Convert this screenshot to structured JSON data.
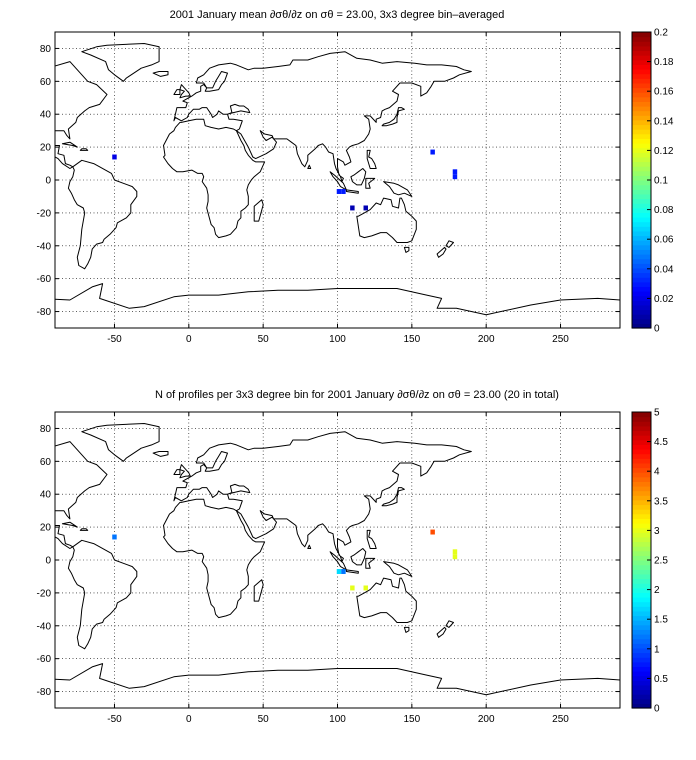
{
  "chart_data": [
    {
      "type": "heatmap",
      "title": "2001 January mean ∂σθ/∂z on σθ = 23.00, 3x3 degree bin–averaged",
      "xlim": [
        -90,
        290
      ],
      "ylim": [
        -90,
        90
      ],
      "xticks": [
        -50,
        0,
        50,
        100,
        150,
        200,
        250
      ],
      "yticks": [
        80,
        60,
        40,
        20,
        0,
        -20,
        -40,
        -60,
        -80
      ],
      "grid": true,
      "colormap": "jet",
      "clim": [
        0,
        0.2
      ],
      "colorbar_ticks": [
        "0",
        "0.02",
        "0.04",
        "0.06",
        "0.08",
        "0.1",
        "0.12",
        "0.14",
        "0.16",
        "0.18",
        "0.2"
      ],
      "cells": [
        {
          "lon": -50,
          "lat": 14,
          "value": 0.02
        },
        {
          "lon": 101,
          "lat": -7,
          "value": 0.03
        },
        {
          "lon": 104,
          "lat": -7,
          "value": 0.03
        },
        {
          "lon": 110,
          "lat": -17,
          "value": 0.01
        },
        {
          "lon": 119,
          "lat": -17,
          "value": 0.01
        },
        {
          "lon": 164,
          "lat": 17,
          "value": 0.03
        },
        {
          "lon": 179,
          "lat": 5,
          "value": 0.03
        },
        {
          "lon": 179,
          "lat": 2,
          "value": 0.03
        }
      ]
    },
    {
      "type": "heatmap",
      "title": "N of profiles per 3x3 degree bin for 2001 January ∂σθ/∂z on σθ = 23.00 (20 in total)",
      "xlim": [
        -90,
        290
      ],
      "ylim": [
        -90,
        90
      ],
      "xticks": [
        -50,
        0,
        50,
        100,
        150,
        200,
        250
      ],
      "yticks": [
        80,
        60,
        40,
        20,
        0,
        -20,
        -40,
        -60,
        -80
      ],
      "grid": true,
      "colormap": "jet",
      "clim": [
        0,
        5
      ],
      "colorbar_ticks": [
        "0",
        "0.5",
        "1",
        "1.5",
        "2",
        "2.5",
        "3",
        "3.5",
        "4",
        "4.5",
        "5"
      ],
      "cells": [
        {
          "lon": -50,
          "lat": 14,
          "value": 1.2
        },
        {
          "lon": 101,
          "lat": -7,
          "value": 1.7
        },
        {
          "lon": 104,
          "lat": -7,
          "value": 1.2
        },
        {
          "lon": 110,
          "lat": -17,
          "value": 3.0
        },
        {
          "lon": 119,
          "lat": -17,
          "value": 3.0
        },
        {
          "lon": 164,
          "lat": 17,
          "value": 4.0
        },
        {
          "lon": 179,
          "lat": 5,
          "value": 3.0
        },
        {
          "lon": 179,
          "lat": 2,
          "value": 3.0
        }
      ]
    }
  ]
}
